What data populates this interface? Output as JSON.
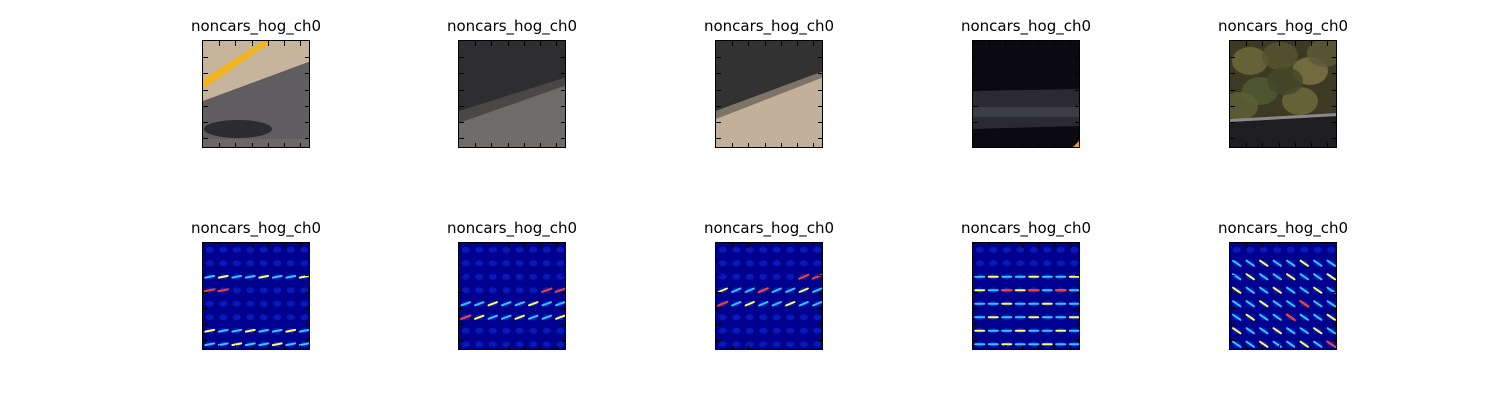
{
  "figure": {
    "rows": [
      {
        "kind": "image",
        "panels": [
          {
            "title": "noncars_hog_ch0",
            "scene": "yellow-line-road"
          },
          {
            "title": "noncars_hog_ch0",
            "scene": "dark-wall-road"
          },
          {
            "title": "noncars_hog_ch0",
            "scene": "shadow-light-road"
          },
          {
            "title": "noncars_hog_ch0",
            "scene": "dark-road"
          },
          {
            "title": "noncars_hog_ch0",
            "scene": "vegetation-road"
          }
        ]
      },
      {
        "kind": "hog",
        "panels": [
          {
            "title": "noncars_hog_ch0",
            "pattern": "hog-horizontal-sparse"
          },
          {
            "title": "noncars_hog_ch0",
            "pattern": "hog-diagonal"
          },
          {
            "title": "noncars_hog_ch0",
            "pattern": "hog-diagonal-up"
          },
          {
            "title": "noncars_hog_ch0",
            "pattern": "hog-horizontal-dense"
          },
          {
            "title": "noncars_hog_ch0",
            "pattern": "hog-grid-vegetation"
          }
        ]
      }
    ],
    "colors": {
      "hog_background": "#00008f",
      "hog_cell": "#0a23c8",
      "hog_mid": "#32c8ff",
      "hog_high": "#ffff55",
      "hog_peak": "#ff3c1e"
    }
  }
}
